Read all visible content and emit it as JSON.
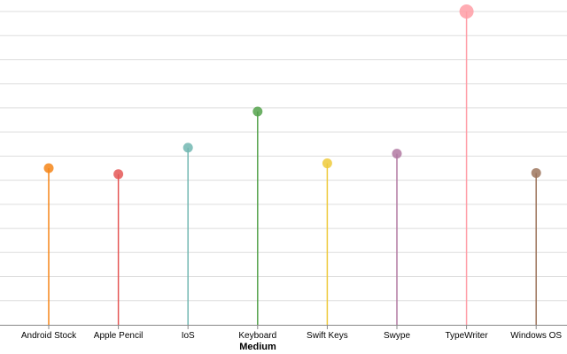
{
  "chart_data": {
    "type": "lollipop",
    "xlabel": "Medium",
    "ylabel": "",
    "ylim": [
      0,
      13
    ],
    "grid": true,
    "categories": [
      "Android Stock",
      "Apple Pencil",
      "IoS",
      "Keyboard",
      "Swift Keys",
      "Swype",
      "TypeWriter",
      "Windows OS"
    ],
    "values": [
      6.5,
      6.25,
      7.35,
      8.85,
      6.7,
      7.1,
      13.0,
      6.3
    ],
    "colors": [
      "#f58518",
      "#e45756",
      "#72b7b2",
      "#54a24b",
      "#eeca3b",
      "#b279a2",
      "#ff9da6",
      "#9d755d"
    ]
  }
}
